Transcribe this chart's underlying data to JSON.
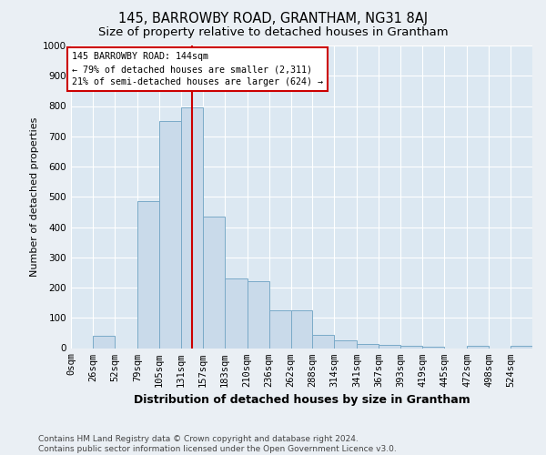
{
  "title": "145, BARROWBY ROAD, GRANTHAM, NG31 8AJ",
  "subtitle": "Size of property relative to detached houses in Grantham",
  "xlabel": "Distribution of detached houses by size in Grantham",
  "ylabel": "Number of detached properties",
  "bin_labels": [
    "0sqm",
    "26sqm",
    "52sqm",
    "79sqm",
    "105sqm",
    "131sqm",
    "157sqm",
    "183sqm",
    "210sqm",
    "236sqm",
    "262sqm",
    "288sqm",
    "314sqm",
    "341sqm",
    "367sqm",
    "393sqm",
    "419sqm",
    "445sqm",
    "472sqm",
    "498sqm",
    "524sqm"
  ],
  "bin_edges": [
    0,
    26,
    52,
    79,
    105,
    131,
    157,
    183,
    210,
    236,
    262,
    288,
    314,
    341,
    367,
    393,
    419,
    445,
    472,
    498,
    524,
    550
  ],
  "bar_heights": [
    0,
    40,
    0,
    485,
    750,
    795,
    435,
    230,
    220,
    125,
    125,
    45,
    25,
    15,
    10,
    8,
    5,
    0,
    8,
    0,
    8
  ],
  "bar_color": "#c9daea",
  "bar_edgecolor": "#7aaac8",
  "property_size": 144,
  "vline_color": "#cc0000",
  "annotation_text": "145 BARROWBY ROAD: 144sqm\n← 79% of detached houses are smaller (2,311)\n21% of semi-detached houses are larger (624) →",
  "annotation_box_facecolor": "#ffffff",
  "annotation_box_edgecolor": "#cc0000",
  "ylim": [
    0,
    1000
  ],
  "yticks": [
    0,
    100,
    200,
    300,
    400,
    500,
    600,
    700,
    800,
    900,
    1000
  ],
  "fig_bg_color": "#eaeff4",
  "plot_bg_color": "#dce8f2",
  "grid_color": "#ffffff",
  "footer_text": "Contains HM Land Registry data © Crown copyright and database right 2024.\nContains public sector information licensed under the Open Government Licence v3.0.",
  "title_fontsize": 10.5,
  "subtitle_fontsize": 9.5,
  "ylabel_fontsize": 8,
  "xlabel_fontsize": 9,
  "tick_fontsize": 7.5,
  "footer_fontsize": 6.5
}
